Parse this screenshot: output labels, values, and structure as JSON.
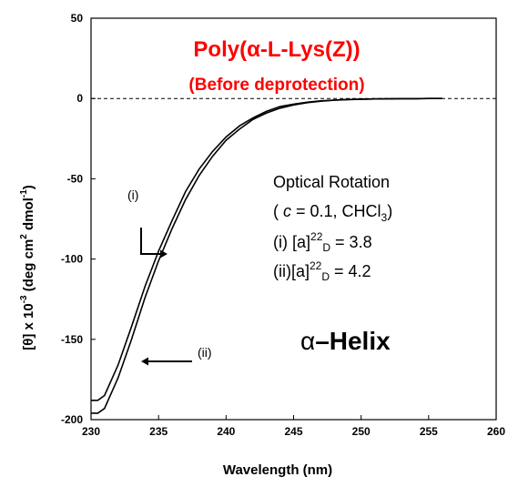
{
  "chart_data": {
    "type": "line",
    "title": "Poly(α-L-Lys(Z))",
    "subtitle": "(Before deprotection)",
    "xlabel": "Wavelength (nm)",
    "ylabel": {
      "main": "[θ] x 10",
      "exp": "-3",
      "unit1": " (deg cm",
      "exp2": "2",
      "unit2": "  dmol",
      "exp3": "-1",
      "close": ")"
    },
    "xlim": [
      230,
      260
    ],
    "ylim": [
      -200,
      50
    ],
    "xticks": [
      230,
      235,
      240,
      245,
      250,
      255,
      260
    ],
    "yticks": [
      50,
      0,
      -50,
      -100,
      -150,
      -200
    ],
    "xtick_labels": [
      "230",
      "235",
      "240",
      "245",
      "250",
      "255",
      "260"
    ],
    "ytick_labels": [
      "50",
      "0",
      "-50",
      "-100",
      "-150",
      "-200"
    ],
    "zero_line": "dashed",
    "grid": false,
    "series": [
      {
        "name": "(i)",
        "color": "#000000",
        "x": [
          230,
          230.5,
          231,
          232,
          233,
          234,
          235,
          236,
          237,
          238,
          239,
          240,
          241,
          242,
          243,
          244,
          245,
          246,
          247,
          248,
          249,
          250,
          251,
          252,
          253,
          254,
          255,
          256
        ],
        "y": [
          -188,
          -188,
          -185,
          -166,
          -142,
          -117,
          -95,
          -76,
          -58,
          -44,
          -33,
          -24,
          -17,
          -12,
          -8,
          -5,
          -3.5,
          -2.3,
          -1.5,
          -1,
          -0.6,
          -0.4,
          -0.3,
          -0.2,
          -0.1,
          -0.1,
          0,
          0
        ]
      },
      {
        "name": "(ii)",
        "color": "#000000",
        "x": [
          230,
          230.5,
          231,
          232,
          233,
          234,
          235,
          236,
          237,
          238,
          239,
          240,
          241,
          242,
          243,
          244,
          245,
          246,
          247,
          248,
          249,
          250,
          251,
          252,
          253,
          254,
          255,
          256
        ],
        "y": [
          -196,
          -196,
          -193,
          -174,
          -150,
          -124,
          -101,
          -81,
          -63,
          -48,
          -36,
          -26,
          -19,
          -13,
          -9,
          -6,
          -4,
          -2.6,
          -1.7,
          -1.1,
          -0.7,
          -0.5,
          -0.3,
          -0.2,
          -0.1,
          -0.1,
          0,
          0
        ]
      }
    ]
  },
  "annotations": {
    "optical_rotation": {
      "line1": "Optical Rotation",
      "line2_pre": "( ",
      "line2_c": "c",
      "line2_post": " = 0.1, CHCl",
      "line2_sub": "3",
      "line2_close": ")",
      "line3_pre": "(i) [a]",
      "line3_sup": "22",
      "line3_sub": "D",
      "line3_post": " = 3.8",
      "line4_pre": "(ii)[a]",
      "line4_sup": "22",
      "line4_sub": "D",
      "line4_post": " = 4.2"
    },
    "label_i": "(i)",
    "label_ii": "(ii)",
    "helix_alpha": "α",
    "helix_text": "–Helix"
  }
}
